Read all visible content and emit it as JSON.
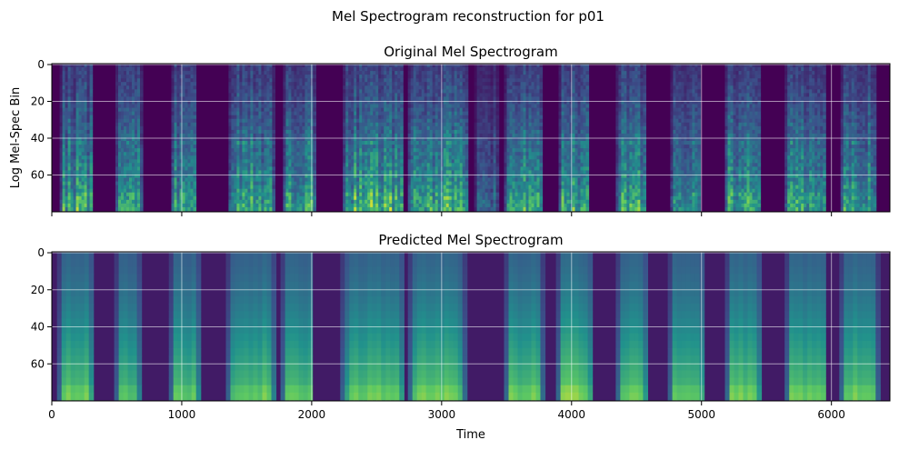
{
  "figure": {
    "suptitle": "Mel Spectrogram reconstruction for p01",
    "colormap": [
      "#440154",
      "#3b528b",
      "#21918c",
      "#5ec962",
      "#fde725"
    ]
  },
  "chart_data": [
    {
      "type": "heatmap",
      "title": "Original Mel Spectrogram",
      "xlabel": "",
      "ylabel": "Log Mel-Spec Bin",
      "xlim": [
        0,
        6450
      ],
      "ylim": [
        80,
        -0.5
      ],
      "xticks": [
        0,
        1000,
        2000,
        3000,
        4000,
        5000,
        6000
      ],
      "xtick_labels_shown": false,
      "yticks": [
        0,
        20,
        40,
        60
      ],
      "yticklabels": [
        "0",
        "20",
        "40",
        "60"
      ],
      "grid": true,
      "style": "sharp",
      "segments": [
        {
          "start": 60,
          "end": 300,
          "level": 0.85
        },
        {
          "start": 490,
          "end": 680,
          "level": 0.8
        },
        {
          "start": 920,
          "end": 1100,
          "level": 0.8
        },
        {
          "start": 1360,
          "end": 1700,
          "level": 0.85
        },
        {
          "start": 1780,
          "end": 2020,
          "level": 0.8
        },
        {
          "start": 2240,
          "end": 2700,
          "level": 0.9
        },
        {
          "start": 2740,
          "end": 3200,
          "level": 0.9
        },
        {
          "start": 3250,
          "end": 3420,
          "level": 0.5
        },
        {
          "start": 3480,
          "end": 3760,
          "level": 0.85
        },
        {
          "start": 3900,
          "end": 4120,
          "level": 0.85
        },
        {
          "start": 4340,
          "end": 4560,
          "level": 0.85
        },
        {
          "start": 4760,
          "end": 4990,
          "level": 0.8
        },
        {
          "start": 5180,
          "end": 5440,
          "level": 0.85
        },
        {
          "start": 5640,
          "end": 5950,
          "level": 0.85
        },
        {
          "start": 6070,
          "end": 6330,
          "level": 0.85
        }
      ]
    },
    {
      "type": "heatmap",
      "title": "Predicted Mel Spectrogram",
      "xlabel": "Time",
      "ylabel": "",
      "xlim": [
        0,
        6450
      ],
      "ylim": [
        80,
        -0.5
      ],
      "xticks": [
        0,
        1000,
        2000,
        3000,
        4000,
        5000,
        6000
      ],
      "xticklabels": [
        "0",
        "1000",
        "2000",
        "3000",
        "4000",
        "5000",
        "6000"
      ],
      "yticks": [
        0,
        20,
        40,
        60
      ],
      "yticklabels": [
        "0",
        "20",
        "40",
        "60"
      ],
      "grid": true,
      "style": "smooth",
      "segments": [
        {
          "start": 40,
          "end": 300,
          "level": 0.8
        },
        {
          "start": 480,
          "end": 660,
          "level": 0.75
        },
        {
          "start": 900,
          "end": 1120,
          "level": 0.75
        },
        {
          "start": 1340,
          "end": 1700,
          "level": 0.8
        },
        {
          "start": 1760,
          "end": 2000,
          "level": 0.75
        },
        {
          "start": 2220,
          "end": 2700,
          "level": 0.8
        },
        {
          "start": 2740,
          "end": 3160,
          "level": 0.85
        },
        {
          "start": 3480,
          "end": 3760,
          "level": 0.8
        },
        {
          "start": 3880,
          "end": 4140,
          "level": 0.85
        },
        {
          "start": 4340,
          "end": 4560,
          "level": 0.8
        },
        {
          "start": 4740,
          "end": 5000,
          "level": 0.8
        },
        {
          "start": 5180,
          "end": 5440,
          "level": 0.8
        },
        {
          "start": 5640,
          "end": 5950,
          "level": 0.8
        },
        {
          "start": 6060,
          "end": 6340,
          "level": 0.8
        }
      ]
    }
  ]
}
